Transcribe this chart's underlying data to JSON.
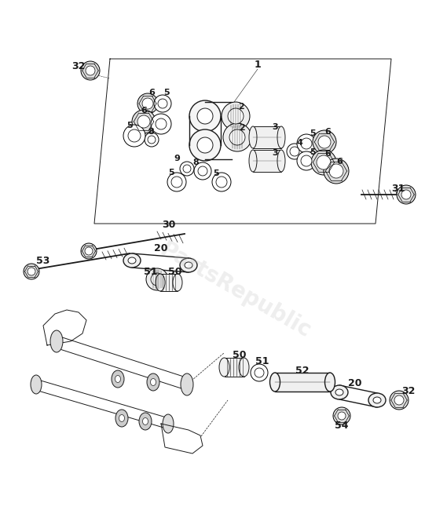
{
  "bg_color": "#ffffff",
  "line_color": "#1a1a1a",
  "watermark_color": "#c8c8c8",
  "watermark_text": "PartsRepublic",
  "fig_width": 5.41,
  "fig_height": 6.5,
  "dpi": 100
}
